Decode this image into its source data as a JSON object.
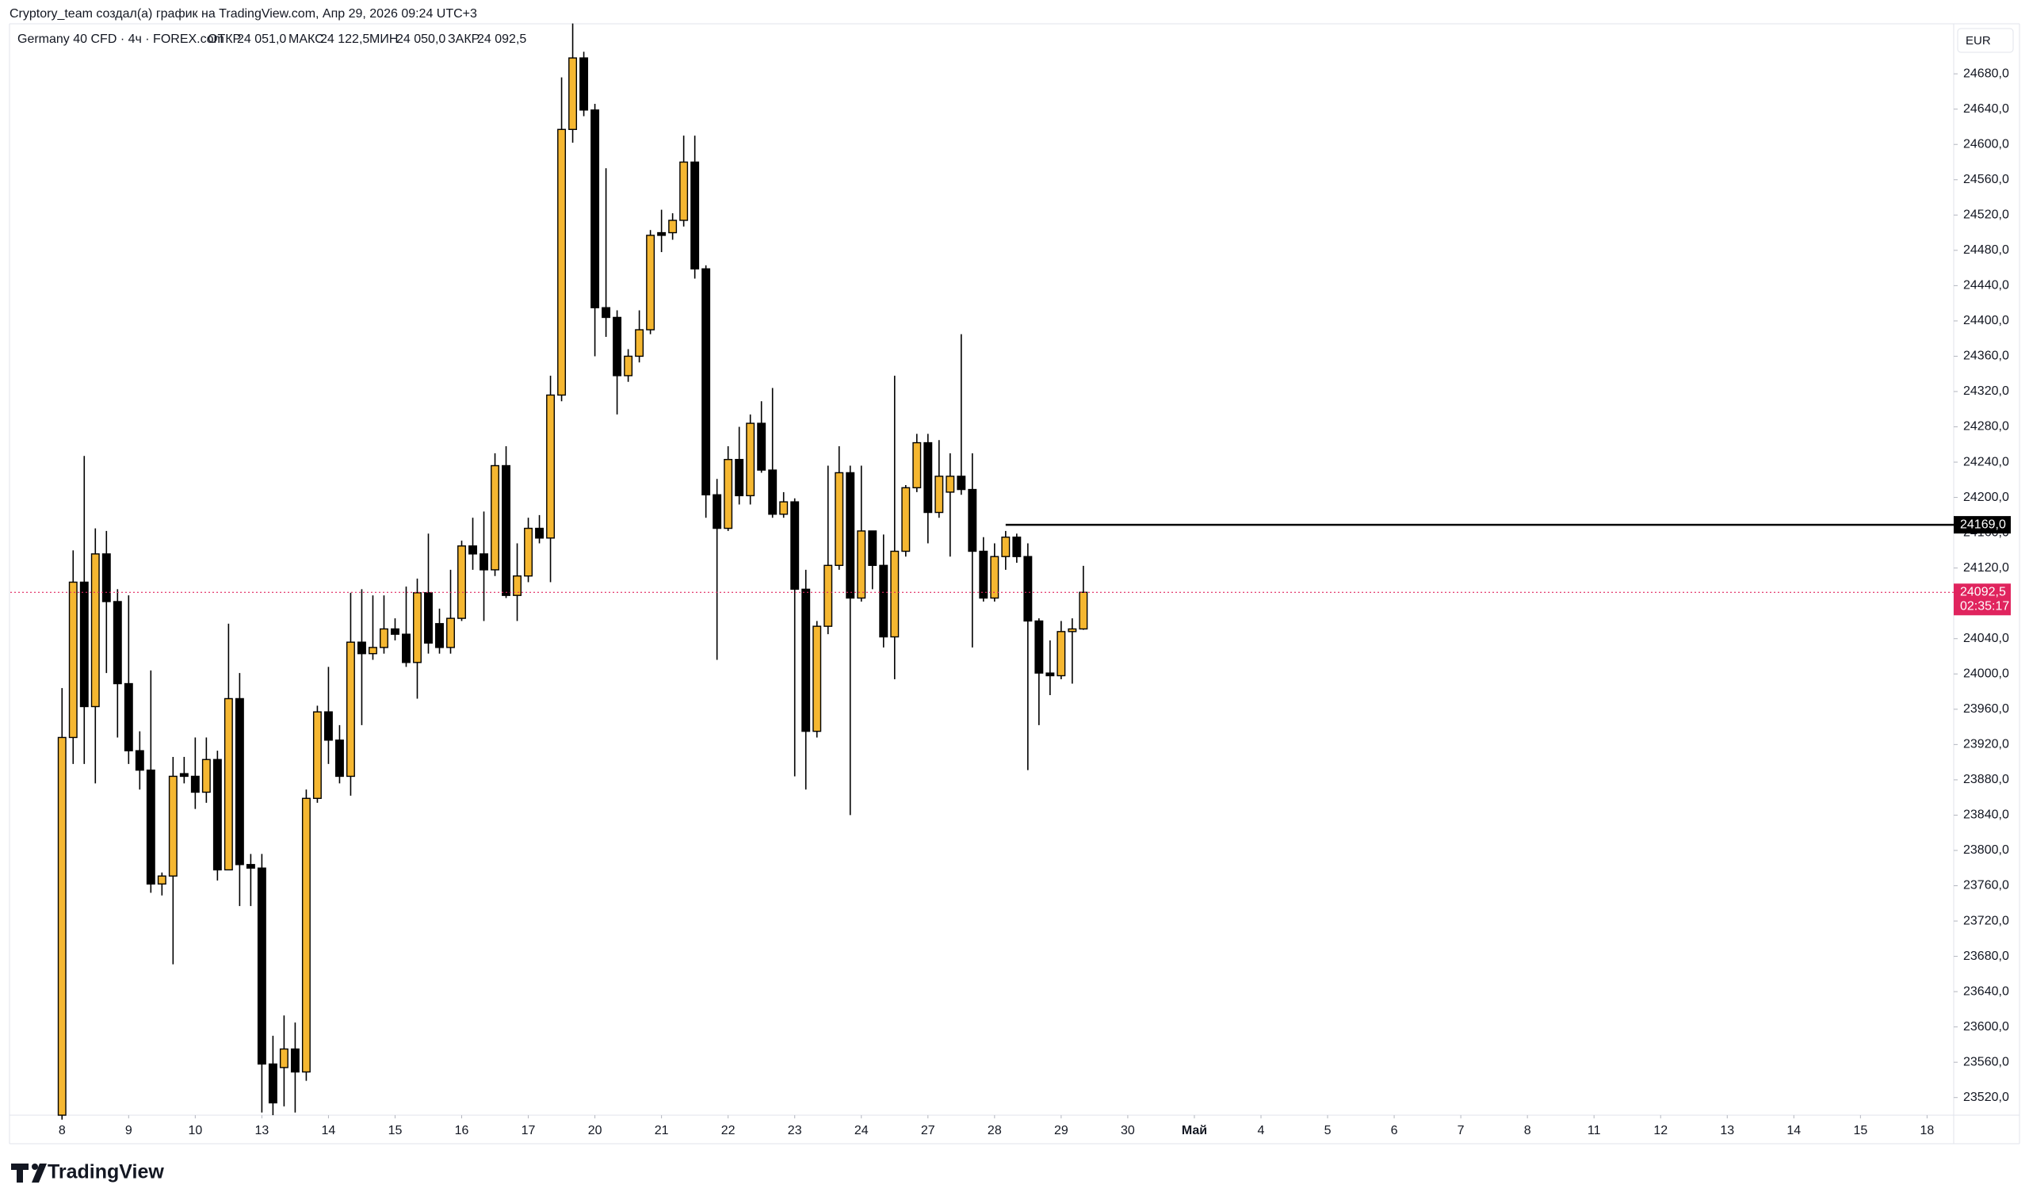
{
  "header": {
    "credit": "Cryptory_team создал(а) график на TradingView.com, Апр 29, 2026 09:24 UTC+3"
  },
  "legend": {
    "symbol": "Germany 40 CFD · 4ч · FOREX.com",
    "open_label": "ОТКР",
    "open": "24 051,0",
    "high_label": "МАКС",
    "high": "24 122,5",
    "low_label": "МИН",
    "low": "24 050,0",
    "close_label": "ЗАКР",
    "close": "24 092,5"
  },
  "currency": "EUR",
  "logo": "TradingView",
  "chart_data": {
    "type": "candlestick",
    "up_color": "#f5b731",
    "down_color": "#000000",
    "border_color": "#000000",
    "open": [
      23500,
      23928,
      24104,
      23963,
      24136,
      24082,
      23989,
      23913,
      23891,
      23762,
      23771,
      23887,
      23884,
      23866,
      23903,
      23778,
      23972,
      23784,
      23780,
      23558,
      23554,
      23575,
      23549,
      23859,
      23957,
      23925,
      23884,
      24036,
      24023,
      24030,
      24051,
      24045,
      24013,
      24092,
      24057,
      24030,
      24063,
      24145,
      24136,
      24118,
      24236,
      24089,
      24111,
      24165,
      24154,
      24316,
      24617,
      24698,
      24639,
      24415,
      24404,
      24338,
      24360,
      24390,
      24500,
      24500,
      24514,
      24580,
      24459,
      24203,
      24165,
      24243,
      24202,
      24284,
      24231,
      24181,
      24195,
      24096,
      23935,
      24054,
      24123,
      24228,
      24086,
      24162,
      24123,
      24042,
      24139,
      24211,
      24262,
      24183,
      24206,
      24224,
      24209,
      24139,
      24086,
      24133,
      24155,
      24133,
      24060,
      24001,
      23998,
      24048,
      24051
    ],
    "high": [
      23984,
      24140,
      24247,
      24165,
      24162,
      24096,
      24089,
      23935,
      24004,
      23775,
      23906,
      23906,
      23928,
      23928,
      23913,
      24057,
      24001,
      23796,
      23796,
      23590,
      23613,
      23605,
      23869,
      23964,
      24008,
      23942,
      24092,
      24096,
      24089,
      24089,
      24063,
      24099,
      24108,
      24159,
      24074,
      24118,
      24151,
      24177,
      24184,
      24250,
      24258,
      24148,
      24177,
      24180,
      24338,
      24676,
      24737,
      24705,
      24646,
      24573,
      24412,
      24368,
      24412,
      24503,
      24526,
      24522,
      24610,
      24610,
      24463,
      24221,
      24258,
      24280,
      24294,
      24309,
      24324,
      24206,
      24199,
      24118,
      24060,
      24236,
      24258,
      24236,
      24236,
      24162,
      24158,
      24338,
      24214,
      24272,
      24272,
      24265,
      24250,
      24385,
      24250,
      24155,
      24148,
      24162,
      24159,
      24148,
      24063,
      24038,
      24060,
      24063,
      24122.5
    ],
    "low": [
      23495,
      23898,
      23898,
      23876,
      24001,
      23928,
      23898,
      23869,
      23752,
      23749,
      23671,
      23876,
      23847,
      23854,
      23766,
      23778,
      23737,
      23737,
      23503,
      23500,
      23510,
      23503,
      23539,
      23854,
      23898,
      23876,
      23862,
      23942,
      24016,
      24023,
      24038,
      24008,
      23972,
      24023,
      24023,
      24023,
      24060,
      24118,
      24060,
      24111,
      24086,
      24060,
      24104,
      24148,
      24104,
      24309,
      24602,
      24632,
      24360,
      24382,
      24294,
      24331,
      24353,
      24385,
      24478,
      24492,
      24507,
      24448,
      24177,
      24016,
      24162,
      24192,
      24192,
      24228,
      24177,
      24177,
      23884,
      23869,
      23928,
      24045,
      24118,
      23840,
      24082,
      24096,
      24030,
      23994,
      24133,
      24206,
      24148,
      24177,
      24133,
      24203,
      24030,
      24082,
      24082,
      24118,
      24126,
      23891,
      23942,
      23976,
      23994,
      23989,
      24050
    ],
    "close": [
      23928,
      24104,
      23963,
      24136,
      24082,
      23989,
      23913,
      23891,
      23762,
      23771,
      23884,
      23884,
      23866,
      23903,
      23778,
      23972,
      23784,
      23780,
      23558,
      23514,
      23575,
      23549,
      23859,
      23957,
      23925,
      23884,
      24036,
      24023,
      24030,
      24051,
      24045,
      24013,
      24092,
      24035,
      24030,
      24063,
      24145,
      24136,
      24118,
      24236,
      24089,
      24111,
      24165,
      24154,
      24316,
      24617,
      24698,
      24639,
      24415,
      24404,
      24338,
      24360,
      24390,
      24497,
      24497,
      24514,
      24580,
      24459,
      24203,
      24165,
      24243,
      24202,
      24284,
      24231,
      24181,
      24195,
      24096,
      23935,
      24054,
      24123,
      24228,
      24086,
      24162,
      24123,
      24042,
      24139,
      24211,
      24262,
      24183,
      24224,
      24224,
      24209,
      24139,
      24086,
      24133,
      24155,
      24133,
      24060,
      24001,
      23998,
      24048,
      24051,
      24092.5
    ],
    "xlim": [
      -4.66,
      170.4
    ],
    "xticks": [
      {
        "value": 0,
        "label": "8"
      },
      {
        "value": 6,
        "label": "9"
      },
      {
        "value": 12,
        "label": "10"
      },
      {
        "value": 18,
        "label": "13"
      },
      {
        "value": 24,
        "label": "14"
      },
      {
        "value": 30,
        "label": "15"
      },
      {
        "value": 36,
        "label": "16"
      },
      {
        "value": 42,
        "label": "17"
      },
      {
        "value": 48,
        "label": "20"
      },
      {
        "value": 54,
        "label": "21"
      },
      {
        "value": 60,
        "label": "22"
      },
      {
        "value": 66,
        "label": "23"
      },
      {
        "value": 72,
        "label": "24"
      },
      {
        "value": 78,
        "label": "27"
      },
      {
        "value": 84,
        "label": "28"
      },
      {
        "value": 90,
        "label": "29"
      },
      {
        "value": 96,
        "label": "30"
      },
      {
        "value": 102,
        "label": "Май"
      },
      {
        "value": 108,
        "label": "4"
      },
      {
        "value": 114,
        "label": "5"
      },
      {
        "value": 120,
        "label": "6"
      },
      {
        "value": 126,
        "label": "7"
      },
      {
        "value": 132,
        "label": "8"
      },
      {
        "value": 138,
        "label": "11"
      },
      {
        "value": 144,
        "label": "12"
      },
      {
        "value": 150,
        "label": "13"
      },
      {
        "value": 156,
        "label": "14"
      },
      {
        "value": 162,
        "label": "15"
      },
      {
        "value": 168,
        "label": "18"
      }
    ],
    "ylim": [
      23500,
      24743
    ],
    "yticks": [
      {
        "value": 23520,
        "label": "23520,0"
      },
      {
        "value": 23560,
        "label": "23560,0"
      },
      {
        "value": 23600,
        "label": "23600,0"
      },
      {
        "value": 23640,
        "label": "23640,0"
      },
      {
        "value": 23680,
        "label": "23680,0"
      },
      {
        "value": 23720,
        "label": "23720,0"
      },
      {
        "value": 23760,
        "label": "23760,0"
      },
      {
        "value": 23800,
        "label": "23800,0"
      },
      {
        "value": 23840,
        "label": "23840,0"
      },
      {
        "value": 23880,
        "label": "23880,0"
      },
      {
        "value": 23920,
        "label": "23920,0"
      },
      {
        "value": 23960,
        "label": "23960,0"
      },
      {
        "value": 24000,
        "label": "24000,0"
      },
      {
        "value": 24040,
        "label": "24040,0"
      },
      {
        "value": 24080,
        "label": "24080,0"
      },
      {
        "value": 24120,
        "label": "24120,0"
      },
      {
        "value": 24160,
        "label": "24160,0"
      },
      {
        "value": 24200,
        "label": "24200,0"
      },
      {
        "value": 24240,
        "label": "24240,0"
      },
      {
        "value": 24280,
        "label": "24280,0"
      },
      {
        "value": 24320,
        "label": "24320,0"
      },
      {
        "value": 24360,
        "label": "24360,0"
      },
      {
        "value": 24400,
        "label": "24400,0"
      },
      {
        "value": 24440,
        "label": "24440,0"
      },
      {
        "value": 24480,
        "label": "24480,0"
      },
      {
        "value": 24520,
        "label": "24520,0"
      },
      {
        "value": 24560,
        "label": "24560,0"
      },
      {
        "value": 24600,
        "label": "24600,0"
      },
      {
        "value": 24640,
        "label": "24640,0"
      },
      {
        "value": 24680,
        "label": "24680,0"
      }
    ],
    "grid": false,
    "level_line": {
      "value": 24169,
      "label": "24169,0",
      "start": 85,
      "color": "#000000"
    },
    "last_price": {
      "value": 24092.5,
      "label": "24092,5",
      "countdown": "02:35:17",
      "color": "#e0245e"
    }
  }
}
